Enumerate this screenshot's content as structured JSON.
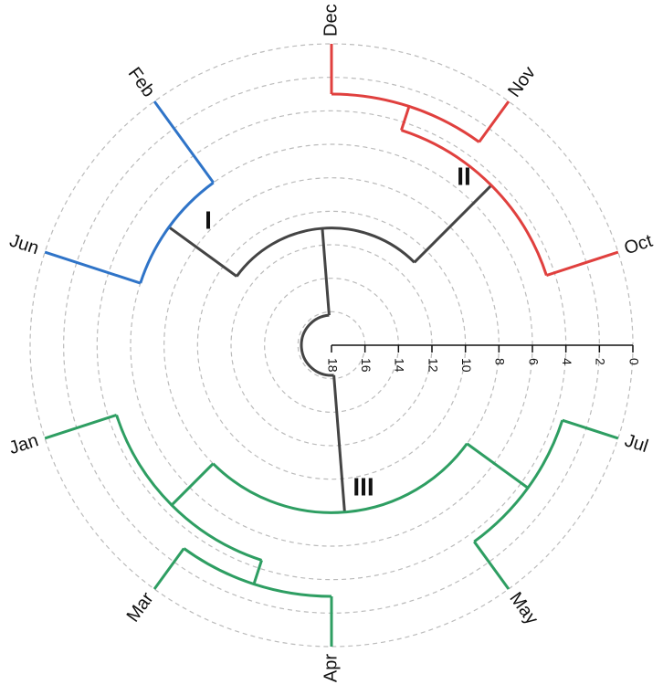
{
  "chart_data": {
    "type": "dendrogram",
    "rlim": [
      0,
      18
    ],
    "rticks": [
      0,
      2,
      4,
      6,
      8,
      10,
      12,
      14,
      16,
      18
    ],
    "grid": true,
    "link_color": "#444444",
    "tree": {
      "height": 16.2,
      "children": [
        {
          "label": "III",
          "color": "#2e9e62",
          "height": 8,
          "children": [
            {
              "height": 3.5,
              "children": [
                {
                  "name": "Jul"
                },
                {
                  "name": "May"
                }
              ]
            },
            {
              "height": 4.5,
              "children": [
                {
                  "height": 3,
                  "children": [
                    {
                      "name": "Apr"
                    },
                    {
                      "name": "Mar"
                    }
                  ]
                },
                {
                  "name": "Jan"
                }
              ]
            }
          ]
        },
        {
          "height": 11,
          "children": [
            {
              "label": "I",
              "color": "#2f74c8",
              "height": 6,
              "children": [
                {
                  "name": "Jun"
                },
                {
                  "name": "Feb"
                }
              ]
            },
            {
              "label": "II",
              "color": "#e0403e",
              "height": 4.5,
              "children": [
                {
                  "height": 3,
                  "children": [
                    {
                      "name": "Dec"
                    },
                    {
                      "name": "Nov"
                    }
                  ]
                },
                {
                  "name": "Oct"
                }
              ]
            }
          ]
        }
      ]
    }
  }
}
